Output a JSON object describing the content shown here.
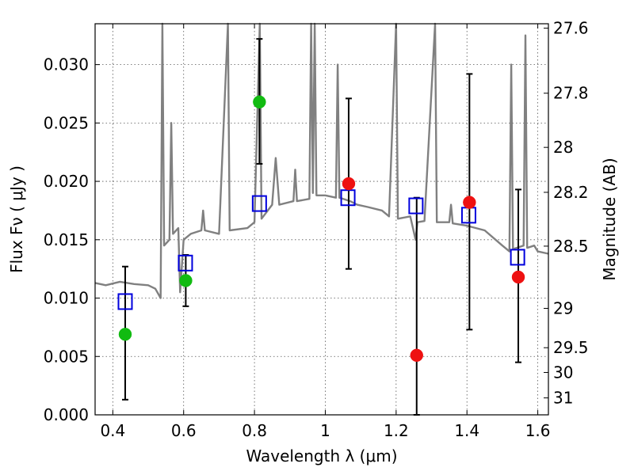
{
  "chart_data": {
    "type": "scatter",
    "xlabel": "Wavelength  λ (μm)",
    "ylabel": "Flux  Fν  ( μJy )",
    "ylabel_right": "Magnitude (AB)",
    "xlim": [
      0.35,
      1.63
    ],
    "ylim": [
      0.0,
      0.0335
    ],
    "grid": true,
    "x_ticks": [
      0.4,
      0.6,
      0.8,
      1.0,
      1.2,
      1.4,
      1.6
    ],
    "x_tick_labels": [
      "0.4",
      "0.6",
      "0.8",
      "1",
      "1.2",
      "1.4",
      "1.6"
    ],
    "y_ticks": [
      0.0,
      0.005,
      0.01,
      0.015,
      0.02,
      0.025,
      0.03
    ],
    "y_tick_labels": [
      "0.000",
      "0.005",
      "0.010",
      "0.015",
      "0.020",
      "0.025",
      "0.030"
    ],
    "right_ticks": [
      {
        "label": "27.6",
        "flux": 0.03312
      },
      {
        "label": "27.8",
        "flux": 0.02755
      },
      {
        "label": "28",
        "flux": 0.02291
      },
      {
        "label": "28.2",
        "flux": 0.01906
      },
      {
        "label": "28.5",
        "flux": 0.01445
      },
      {
        "label": "29",
        "flux": 0.00912
      },
      {
        "label": "29.5",
        "flux": 0.00575
      },
      {
        "label": "30",
        "flux": 0.00363
      },
      {
        "label": "31",
        "flux": 0.00145
      }
    ],
    "colors": {
      "spectrum": "#808080",
      "green": "#11bb11",
      "red": "#ee1111",
      "model": "#0000dd",
      "errorbar": "#000000",
      "grid": "#555555"
    },
    "series": [
      {
        "marker": "model-squares",
        "points": [
          {
            "x": 0.435,
            "y": 0.0097
          },
          {
            "x": 0.605,
            "y": 0.013
          },
          {
            "x": 0.814,
            "y": 0.0181
          },
          {
            "x": 1.064,
            "y": 0.0186
          },
          {
            "x": 1.256,
            "y": 0.0179
          },
          {
            "x": 1.405,
            "y": 0.0171
          },
          {
            "x": 1.543,
            "y": 0.0135
          }
        ]
      },
      {
        "marker": "green-circles",
        "points": [
          {
            "x": 0.435,
            "y": 0.0069,
            "err": [
              0.0013,
              0.0127
            ]
          },
          {
            "x": 0.606,
            "y": 0.0115,
            "err": [
              0.0093,
              0.0137
            ]
          },
          {
            "x": 0.814,
            "y": 0.0268,
            "err": [
              0.0215,
              0.0322
            ]
          }
        ]
      },
      {
        "marker": "red-circles",
        "points": [
          {
            "x": 1.066,
            "y": 0.0198,
            "err": [
              0.0125,
              0.0271
            ]
          },
          {
            "x": 1.258,
            "y": 0.0051,
            "err": [
              0.0,
              0.0186
            ]
          },
          {
            "x": 1.407,
            "y": 0.0182,
            "err": [
              0.0073,
              0.0292
            ]
          },
          {
            "x": 1.545,
            "y": 0.0118,
            "err": [
              0.0045,
              0.0193
            ]
          }
        ]
      },
      {
        "marker": "spectrum-line",
        "points": [
          {
            "x": 0.35,
            "y": 0.0113
          },
          {
            "x": 0.38,
            "y": 0.0111
          },
          {
            "x": 0.42,
            "y": 0.0114
          },
          {
            "x": 0.46,
            "y": 0.0112
          },
          {
            "x": 0.5,
            "y": 0.0111
          },
          {
            "x": 0.52,
            "y": 0.0108
          },
          {
            "x": 0.535,
            "y": 0.01
          },
          {
            "x": 0.54,
            "y": 0.0335
          },
          {
            "x": 0.545,
            "y": 0.0145
          },
          {
            "x": 0.56,
            "y": 0.015
          },
          {
            "x": 0.565,
            "y": 0.025
          },
          {
            "x": 0.57,
            "y": 0.0155
          },
          {
            "x": 0.585,
            "y": 0.016
          },
          {
            "x": 0.59,
            "y": 0.0105
          },
          {
            "x": 0.6,
            "y": 0.015
          },
          {
            "x": 0.62,
            "y": 0.0155
          },
          {
            "x": 0.65,
            "y": 0.0158
          },
          {
            "x": 0.655,
            "y": 0.0175
          },
          {
            "x": 0.66,
            "y": 0.0158
          },
          {
            "x": 0.7,
            "y": 0.0155
          },
          {
            "x": 0.725,
            "y": 0.0335
          },
          {
            "x": 0.73,
            "y": 0.0158
          },
          {
            "x": 0.78,
            "y": 0.016
          },
          {
            "x": 0.8,
            "y": 0.0165
          },
          {
            "x": 0.815,
            "y": 0.0335
          },
          {
            "x": 0.82,
            "y": 0.0168
          },
          {
            "x": 0.85,
            "y": 0.018
          },
          {
            "x": 0.86,
            "y": 0.022
          },
          {
            "x": 0.87,
            "y": 0.018
          },
          {
            "x": 0.91,
            "y": 0.0183
          },
          {
            "x": 0.915,
            "y": 0.021
          },
          {
            "x": 0.92,
            "y": 0.0183
          },
          {
            "x": 0.955,
            "y": 0.0185
          },
          {
            "x": 0.96,
            "y": 0.0335
          },
          {
            "x": 0.965,
            "y": 0.019
          },
          {
            "x": 0.97,
            "y": 0.0335
          },
          {
            "x": 0.975,
            "y": 0.0188
          },
          {
            "x": 1.0,
            "y": 0.0188
          },
          {
            "x": 1.03,
            "y": 0.0186
          },
          {
            "x": 1.035,
            "y": 0.03
          },
          {
            "x": 1.04,
            "y": 0.0186
          },
          {
            "x": 1.07,
            "y": 0.0183
          },
          {
            "x": 1.09,
            "y": 0.018
          },
          {
            "x": 1.12,
            "y": 0.0178
          },
          {
            "x": 1.16,
            "y": 0.0175
          },
          {
            "x": 1.18,
            "y": 0.017
          },
          {
            "x": 1.2,
            "y": 0.0335
          },
          {
            "x": 1.205,
            "y": 0.0168
          },
          {
            "x": 1.24,
            "y": 0.017
          },
          {
            "x": 1.255,
            "y": 0.015
          },
          {
            "x": 1.26,
            "y": 0.0165
          },
          {
            "x": 1.28,
            "y": 0.0166
          },
          {
            "x": 1.31,
            "y": 0.0335
          },
          {
            "x": 1.315,
            "y": 0.0165
          },
          {
            "x": 1.35,
            "y": 0.0165
          },
          {
            "x": 1.355,
            "y": 0.018
          },
          {
            "x": 1.36,
            "y": 0.0164
          },
          {
            "x": 1.4,
            "y": 0.0162
          },
          {
            "x": 1.45,
            "y": 0.0158
          },
          {
            "x": 1.5,
            "y": 0.0145
          },
          {
            "x": 1.52,
            "y": 0.014
          },
          {
            "x": 1.525,
            "y": 0.03
          },
          {
            "x": 1.53,
            "y": 0.0142
          },
          {
            "x": 1.56,
            "y": 0.0145
          },
          {
            "x": 1.565,
            "y": 0.0325
          },
          {
            "x": 1.57,
            "y": 0.0143
          },
          {
            "x": 1.59,
            "y": 0.0145
          },
          {
            "x": 1.6,
            "y": 0.014
          },
          {
            "x": 1.63,
            "y": 0.0138
          }
        ]
      }
    ]
  }
}
